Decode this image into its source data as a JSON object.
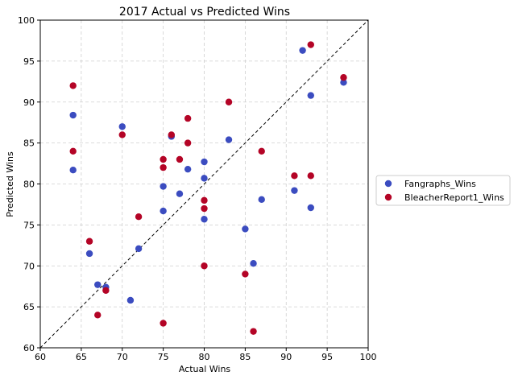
{
  "chart_data": {
    "type": "scatter",
    "title": "2017 Actual vs Predicted Wins",
    "xlabel": "Actual Wins",
    "ylabel": "Predicted Wins",
    "xlim": [
      60,
      100
    ],
    "ylim": [
      60,
      100
    ],
    "xticks": [
      60,
      65,
      70,
      75,
      80,
      85,
      90,
      95,
      100
    ],
    "yticks": [
      60,
      65,
      70,
      75,
      80,
      85,
      90,
      95,
      100
    ],
    "grid": true,
    "legend_position": "outside-right",
    "reference_line": {
      "from": [
        60,
        60
      ],
      "to": [
        100,
        100
      ],
      "style": "dashed",
      "color": "#000000"
    },
    "series": [
      {
        "name": "Fangraphs_Wins",
        "color": "#3b4cc0",
        "x": [
          64,
          64,
          66,
          67,
          68,
          70,
          71,
          72,
          75,
          75,
          76,
          77,
          78,
          80,
          80,
          80,
          83,
          85,
          86,
          87,
          91,
          92,
          93,
          93,
          97
        ],
        "y": [
          88.4,
          81.7,
          71.5,
          67.7,
          67.4,
          87.0,
          65.8,
          72.1,
          79.7,
          76.7,
          85.8,
          78.8,
          81.8,
          82.7,
          80.7,
          75.7,
          85.4,
          74.5,
          70.3,
          78.1,
          79.2,
          96.3,
          90.8,
          77.1,
          92.4
        ]
      },
      {
        "name": "BleacherReport1_Wins",
        "color": "#b40426",
        "x": [
          64,
          64,
          66,
          67,
          68,
          70,
          72,
          75,
          75,
          75,
          76,
          77,
          78,
          78,
          80,
          80,
          80,
          83,
          85,
          86,
          87,
          91,
          93,
          93,
          97
        ],
        "y": [
          92,
          84,
          73,
          64,
          67,
          86,
          76,
          83,
          82,
          63,
          86,
          83,
          88,
          85,
          78,
          77,
          70,
          90,
          69,
          62,
          84,
          81,
          97,
          81,
          93
        ]
      }
    ]
  }
}
